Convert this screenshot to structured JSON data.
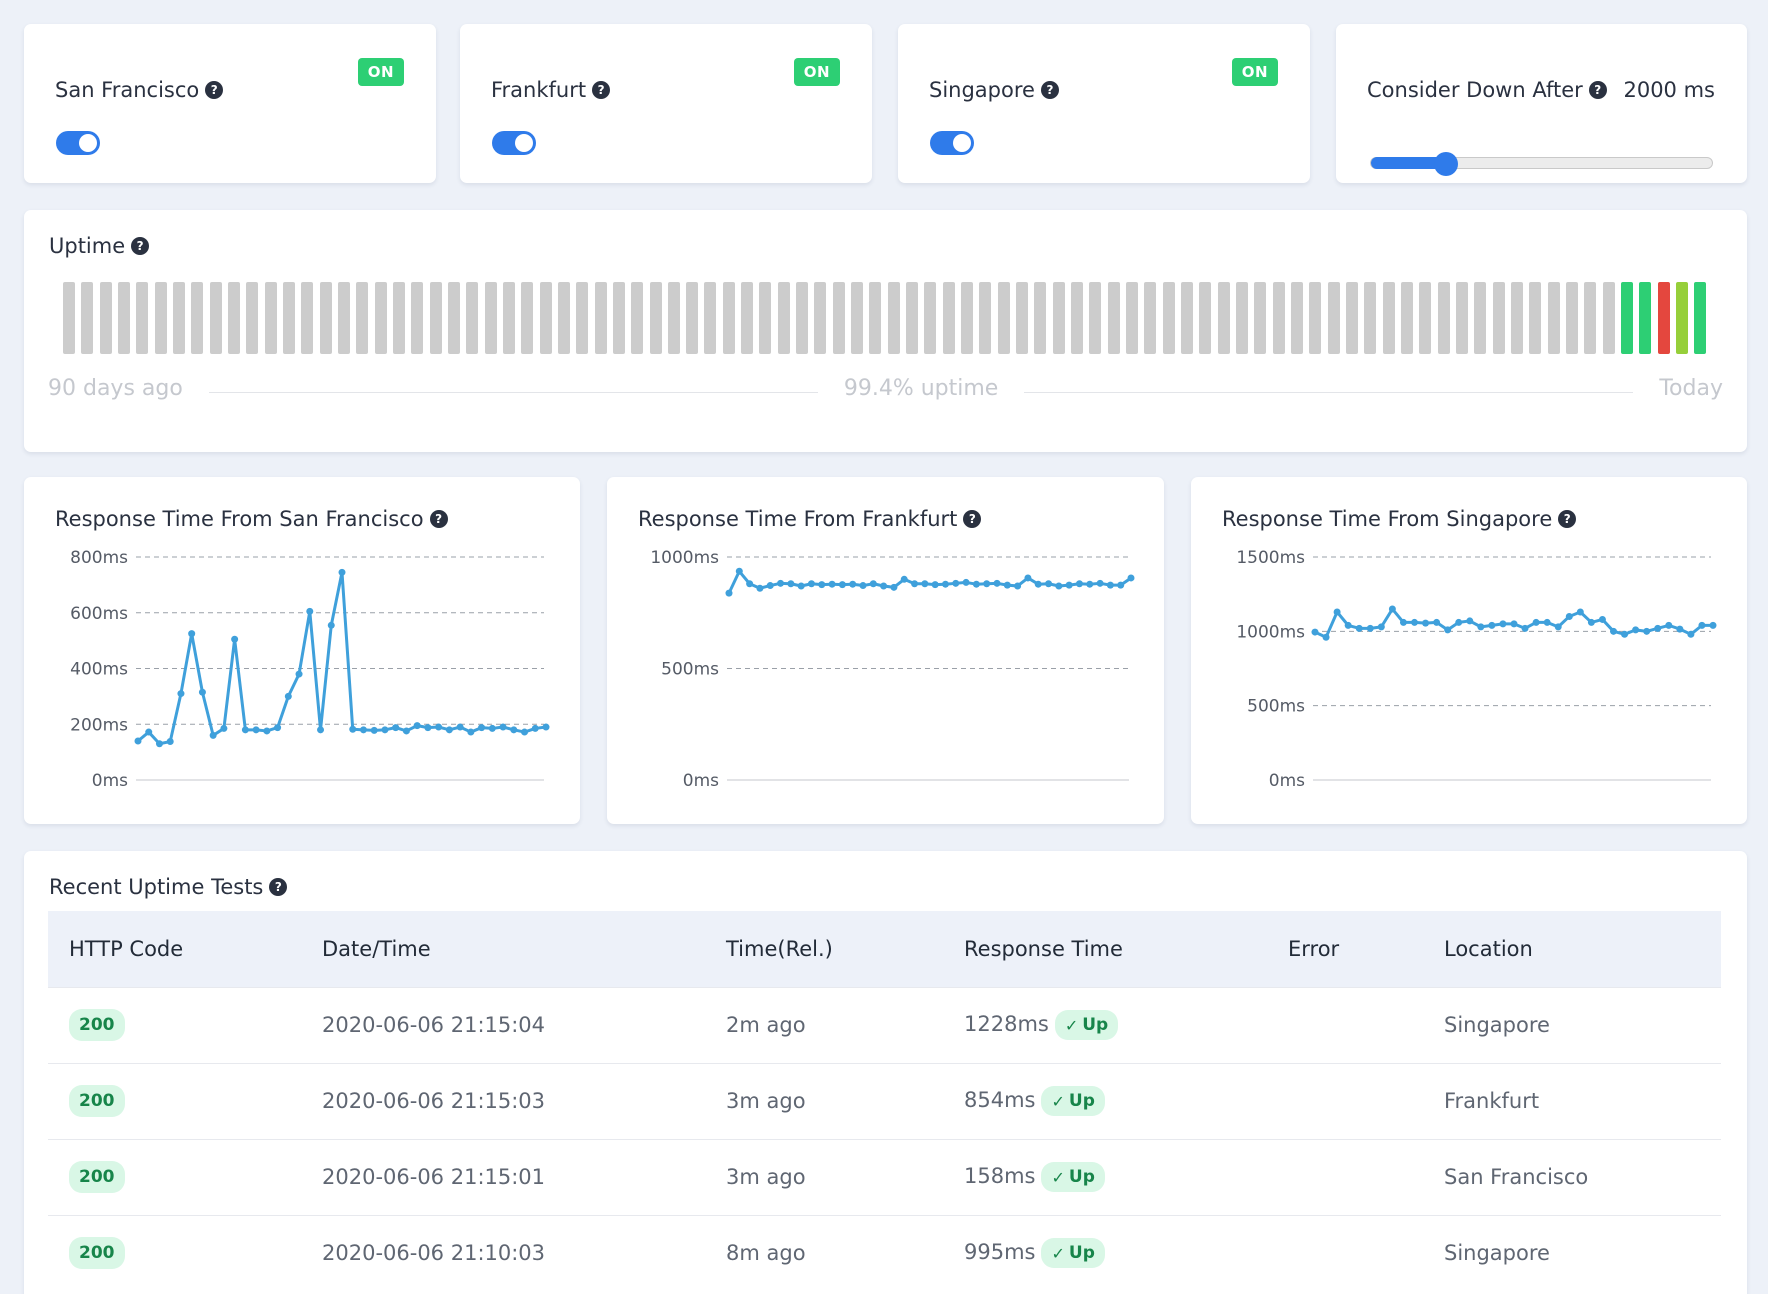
{
  "regions": [
    {
      "name": "San Francisco",
      "status": "ON",
      "enabled": true
    },
    {
      "name": "Frankfurt",
      "status": "ON",
      "enabled": true
    },
    {
      "name": "Singapore",
      "status": "ON",
      "enabled": true
    }
  ],
  "down_after": {
    "label": "Consider Down After",
    "value_text": "2000 ms",
    "fraction": 0.22
  },
  "uptime": {
    "title": "Uptime",
    "left_label": "90 days ago",
    "center_label": "99.4% uptime",
    "right_label": "Today",
    "colors": {
      "none": "#cccccc",
      "up": "#2dcf74",
      "down": "#e4473e",
      "partial": "#96cf3a"
    },
    "days": [
      "none",
      "none",
      "none",
      "none",
      "none",
      "none",
      "none",
      "none",
      "none",
      "none",
      "none",
      "none",
      "none",
      "none",
      "none",
      "none",
      "none",
      "none",
      "none",
      "none",
      "none",
      "none",
      "none",
      "none",
      "none",
      "none",
      "none",
      "none",
      "none",
      "none",
      "none",
      "none",
      "none",
      "none",
      "none",
      "none",
      "none",
      "none",
      "none",
      "none",
      "none",
      "none",
      "none",
      "none",
      "none",
      "none",
      "none",
      "none",
      "none",
      "none",
      "none",
      "none",
      "none",
      "none",
      "none",
      "none",
      "none",
      "none",
      "none",
      "none",
      "none",
      "none",
      "none",
      "none",
      "none",
      "none",
      "none",
      "none",
      "none",
      "none",
      "none",
      "none",
      "none",
      "none",
      "none",
      "none",
      "none",
      "none",
      "none",
      "none",
      "none",
      "none",
      "none",
      "none",
      "none",
      "up",
      "up",
      "down",
      "partial",
      "up"
    ]
  },
  "chart_data": [
    {
      "type": "line",
      "title": "Response Time From San Francisco",
      "yticks": [
        "800ms",
        "600ms",
        "400ms",
        "200ms",
        "0ms"
      ],
      "ylim": [
        0,
        800
      ],
      "color": "#3fa0db",
      "values": [
        140,
        172,
        130,
        138,
        310,
        525,
        315,
        160,
        185,
        505,
        180,
        180,
        176,
        188,
        300,
        380,
        605,
        180,
        555,
        745,
        182,
        180,
        178,
        180,
        188,
        176,
        195,
        188,
        190,
        180,
        190,
        172,
        188,
        185,
        190,
        180,
        172,
        185,
        190
      ]
    },
    {
      "type": "line",
      "title": "Response Time From Frankfurt",
      "yticks": [
        "1000ms",
        "500ms",
        "0ms"
      ],
      "ylim": [
        0,
        1000
      ],
      "color": "#3fa0db",
      "values": [
        838,
        936,
        880,
        860,
        872,
        882,
        880,
        870,
        880,
        876,
        878,
        876,
        878,
        872,
        880,
        870,
        864,
        900,
        880,
        880,
        876,
        878,
        882,
        886,
        878,
        880,
        882,
        874,
        870,
        906,
        878,
        880,
        870,
        874,
        880,
        878,
        882,
        874,
        874,
        906
      ]
    },
    {
      "type": "line",
      "title": "Response Time From Singapore",
      "yticks": [
        "1500ms",
        "1000ms",
        "500ms",
        "0ms"
      ],
      "ylim": [
        0,
        1500
      ],
      "color": "#3fa0db",
      "values": [
        995,
        960,
        1130,
        1040,
        1020,
        1020,
        1030,
        1150,
        1060,
        1060,
        1055,
        1060,
        1010,
        1060,
        1070,
        1030,
        1040,
        1050,
        1050,
        1020,
        1060,
        1060,
        1030,
        1100,
        1130,
        1060,
        1080,
        1000,
        980,
        1010,
        1000,
        1020,
        1040,
        1015,
        980,
        1040,
        1040
      ]
    }
  ],
  "recent": {
    "title": "Recent Uptime Tests",
    "headers": [
      "HTTP Code",
      "Date/Time",
      "Time(Rel.)",
      "Response Time",
      "Error",
      "Location"
    ],
    "rows": [
      {
        "code": "200",
        "datetime": "2020-06-06 21:15:04",
        "rel": "2m ago",
        "response": "1228ms",
        "status": "Up",
        "error": "",
        "location": "Singapore"
      },
      {
        "code": "200",
        "datetime": "2020-06-06 21:15:03",
        "rel": "3m ago",
        "response": "854ms",
        "status": "Up",
        "error": "",
        "location": "Frankfurt"
      },
      {
        "code": "200",
        "datetime": "2020-06-06 21:15:01",
        "rel": "3m ago",
        "response": "158ms",
        "status": "Up",
        "error": "",
        "location": "San Francisco"
      },
      {
        "code": "200",
        "datetime": "2020-06-06 21:10:03",
        "rel": "8m ago",
        "response": "995ms",
        "status": "Up",
        "error": "",
        "location": "Singapore"
      }
    ]
  }
}
